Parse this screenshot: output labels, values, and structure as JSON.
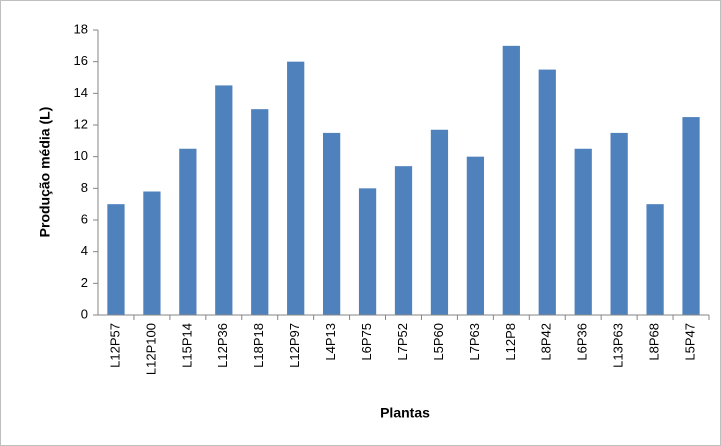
{
  "chart_data": {
    "type": "bar",
    "x_label": "Plantas",
    "y_label": "Produção média (L)",
    "categories": [
      "L12P57",
      "L12P100",
      "L15P14",
      "L12P36",
      "L18P18",
      "L12P97",
      "L4P13",
      "L6P75",
      "L7P52",
      "L5P60",
      "L7P63",
      "L12P8",
      "L8P42",
      "L6P36",
      "L13P63",
      "L8P68",
      "L5P47"
    ],
    "values": [
      7,
      7.8,
      10.5,
      14.5,
      13,
      16,
      11.5,
      8,
      9.4,
      11.7,
      10,
      17,
      15.5,
      10.5,
      11.5,
      7,
      12.5
    ],
    "color": "#4f81bd",
    "ylim": [
      0,
      18
    ],
    "yticks": [
      0,
      2,
      4,
      6,
      8,
      10,
      12,
      14,
      16,
      18
    ],
    "grid": false
  }
}
